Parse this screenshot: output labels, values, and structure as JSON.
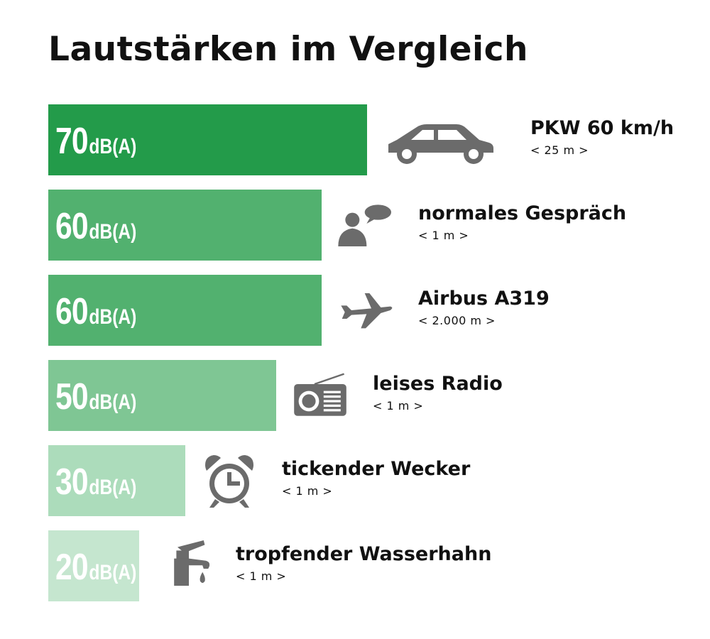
{
  "chart_data": {
    "type": "bar",
    "orientation": "horizontal",
    "title": "Lautstärken im Vergleich",
    "unit": "dB(A)",
    "categories": [
      "PKW 60 km/h",
      "normales Gespräch",
      "Airbus A319",
      "leises Radio",
      "tickender Wecker",
      "tropfender Wasserhahn"
    ],
    "values": [
      70,
      60,
      60,
      50,
      30,
      20
    ],
    "value_labels": [
      "70",
      "60",
      "60",
      "50",
      "30",
      "20"
    ],
    "distances": [
      "< 25 m >",
      "< 1 m >",
      "< 2.000 m >",
      "< 1 m >",
      "< 1 m >",
      "< 1 m >"
    ],
    "icons": [
      "car-icon",
      "speaking-person-icon",
      "airplane-icon",
      "radio-icon",
      "alarm-clock-icon",
      "dripping-faucet-icon"
    ],
    "colors": [
      "#239b4a",
      "#52b16f",
      "#52b16f",
      "#7fc694",
      "#acdcbb",
      "#c5e6cf"
    ],
    "icon_color": "#6b6b6b",
    "grid": false,
    "legend": "none"
  }
}
